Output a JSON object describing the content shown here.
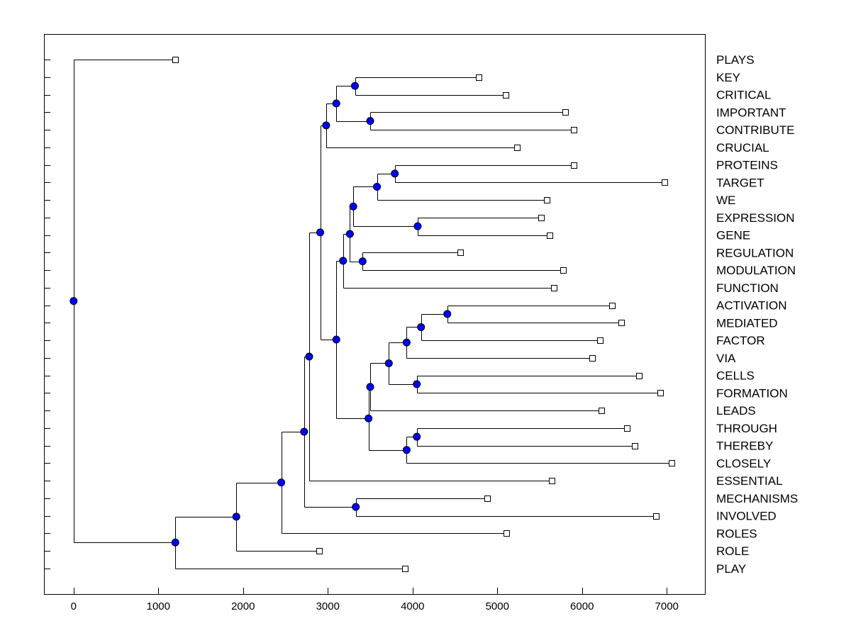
{
  "chart_data": {
    "type": "dendrogram",
    "title": "",
    "xlabel": "",
    "ylabel": "",
    "xlim": [
      -350,
      7450
    ],
    "x_ticks": [
      0,
      1000,
      2000,
      3000,
      4000,
      5000,
      6000,
      7000
    ],
    "x_tick_labels": [
      "0",
      "1000",
      "2000",
      "3000",
      "4000",
      "5000",
      "6000",
      "7000"
    ],
    "colors": {
      "node": "#0000ff",
      "line": "#000000",
      "leaf": "#ffffff"
    },
    "leaves": [
      {
        "label": "PLAYS",
        "value": 1200
      },
      {
        "label": "KEY",
        "value": 4780
      },
      {
        "label": "CRITICAL",
        "value": 5100
      },
      {
        "label": "IMPORTANT",
        "value": 5800
      },
      {
        "label": "CONTRIBUTE",
        "value": 5900
      },
      {
        "label": "CRUCIAL",
        "value": 5230
      },
      {
        "label": "PROTEINS",
        "value": 5900
      },
      {
        "label": "TARGET",
        "value": 6970
      },
      {
        "label": "WE",
        "value": 5580
      },
      {
        "label": "EXPRESSION",
        "value": 5520
      },
      {
        "label": "GENE",
        "value": 5620
      },
      {
        "label": "REGULATION",
        "value": 4560
      },
      {
        "label": "MODULATION",
        "value": 5780
      },
      {
        "label": "FUNCTION",
        "value": 5670
      },
      {
        "label": "ACTIVATION",
        "value": 6350
      },
      {
        "label": "MEDIATED",
        "value": 6460
      },
      {
        "label": "FACTOR",
        "value": 6210
      },
      {
        "label": "VIA",
        "value": 6120
      },
      {
        "label": "CELLS",
        "value": 6670
      },
      {
        "label": "FORMATION",
        "value": 6920
      },
      {
        "label": "LEADS",
        "value": 6230
      },
      {
        "label": "THROUGH",
        "value": 6530
      },
      {
        "label": "THEREBY",
        "value": 6620
      },
      {
        "label": "CLOSELY",
        "value": 7060
      },
      {
        "label": "ESSENTIAL",
        "value": 5640
      },
      {
        "label": "MECHANISMS",
        "value": 4880
      },
      {
        "label": "INVOLVED",
        "value": 6870
      },
      {
        "label": "ROLES",
        "value": 5110
      },
      {
        "label": "ROLE",
        "value": 2900
      },
      {
        "label": "PLAY",
        "value": 3910
      }
    ],
    "merges": [
      {
        "id": "n1",
        "value": 3320,
        "children": [
          1,
          2
        ]
      },
      {
        "id": "n2",
        "value": 3500,
        "children": [
          3,
          4
        ]
      },
      {
        "id": "n3",
        "value": 3100,
        "children": [
          "n1",
          "n2"
        ]
      },
      {
        "id": "n4",
        "value": 2980,
        "children": [
          "n3",
          5
        ]
      },
      {
        "id": "n5",
        "value": 3790,
        "children": [
          6,
          7
        ]
      },
      {
        "id": "n6",
        "value": 3580,
        "children": [
          "n5",
          8
        ]
      },
      {
        "id": "n7",
        "value": 4060,
        "children": [
          9,
          10
        ]
      },
      {
        "id": "n8",
        "value": 3300,
        "children": [
          "n6",
          "n7"
        ]
      },
      {
        "id": "n9",
        "value": 3410,
        "children": [
          11,
          12
        ]
      },
      {
        "id": "n10",
        "value": 3260,
        "children": [
          "n8",
          "n9"
        ]
      },
      {
        "id": "n11",
        "value": 3180,
        "children": [
          "n10",
          13
        ]
      },
      {
        "id": "n12",
        "value": 4410,
        "children": [
          14,
          15
        ]
      },
      {
        "id": "n13",
        "value": 4100,
        "children": [
          "n12",
          16
        ]
      },
      {
        "id": "n14",
        "value": 3930,
        "children": [
          "n13",
          17
        ]
      },
      {
        "id": "n15",
        "value": 4050,
        "children": [
          18,
          19
        ]
      },
      {
        "id": "n16",
        "value": 3720,
        "children": [
          "n14",
          "n15"
        ]
      },
      {
        "id": "n17",
        "value": 3500,
        "children": [
          "n16",
          20
        ]
      },
      {
        "id": "n18",
        "value": 4050,
        "children": [
          21,
          22
        ]
      },
      {
        "id": "n19",
        "value": 3930,
        "children": [
          "n18",
          23
        ]
      },
      {
        "id": "n20",
        "value": 3480,
        "children": [
          "n17",
          "n19"
        ]
      },
      {
        "id": "n21",
        "value": 3100,
        "children": [
          "n11",
          "n20"
        ]
      },
      {
        "id": "n22",
        "value": 2910,
        "children": [
          "n4",
          "n21"
        ]
      },
      {
        "id": "n23",
        "value": 2780,
        "children": [
          "n22",
          24
        ]
      },
      {
        "id": "n24",
        "value": 3330,
        "children": [
          25,
          26
        ]
      },
      {
        "id": "n25",
        "value": 2720,
        "children": [
          "n23",
          "n24"
        ]
      },
      {
        "id": "n26",
        "value": 2450,
        "children": [
          "n25",
          27
        ]
      },
      {
        "id": "n27",
        "value": 1920,
        "children": [
          "n26",
          28
        ]
      },
      {
        "id": "n28",
        "value": 1200,
        "children": [
          "n27",
          29
        ]
      },
      {
        "id": "n29",
        "value": 0,
        "children": [
          0,
          "n28"
        ]
      }
    ]
  }
}
